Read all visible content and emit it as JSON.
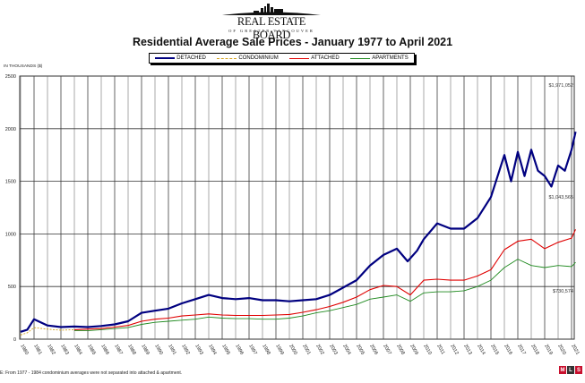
{
  "logo": {
    "name": "REAL ESTATE BOARD",
    "subtitle": "OF GREATER VANCOUVER"
  },
  "mls_logo": {
    "letters": [
      "M",
      "L",
      "S"
    ]
  },
  "chart_data": {
    "type": "line",
    "title": "Residential Average Sale Prices  -  January 1977 to April 2021",
    "ylabel": "IN THOUSANDS ($)",
    "xlabel": "",
    "ylim": [
      0,
      2500
    ],
    "yticks": [
      0,
      500,
      1000,
      1500,
      2000,
      2500
    ],
    "xticks": [
      "1980",
      "1981",
      "1982",
      "1983",
      "1984",
      "1985",
      "1986",
      "1987",
      "1988",
      "1989",
      "1990",
      "1991",
      "1992",
      "1993",
      "1994",
      "1995",
      "1996",
      "1997",
      "1998",
      "1999",
      "2000",
      "2001",
      "2002",
      "2003",
      "2004",
      "2005",
      "2006",
      "2007",
      "2008",
      "2009",
      "2010",
      "2011",
      "2012",
      "2013",
      "2014",
      "2015",
      "2016",
      "2017",
      "2018",
      "2019",
      "2020",
      "2021"
    ],
    "grid": true,
    "legend": "top-center",
    "series": [
      {
        "name": "DETACHED",
        "color": "#000080",
        "style": "solid",
        "x": [
          1980,
          1980.5,
          1981,
          1981.5,
          1982,
          1983,
          1984,
          1985,
          1986,
          1987,
          1988,
          1989,
          1990,
          1991,
          1992,
          1993,
          1994,
          1995,
          1996,
          1997,
          1998,
          1999,
          2000,
          2001,
          2002,
          2003,
          2004,
          2005,
          2006,
          2007,
          2008,
          2008.8,
          2009.5,
          2010,
          2011,
          2012,
          2013,
          2014,
          2015,
          2016,
          2016.5,
          2017,
          2017.5,
          2018,
          2018.5,
          2019,
          2019.5,
          2020,
          2020.5,
          2021,
          2021.3
        ],
        "y": [
          70,
          90,
          190,
          160,
          130,
          115,
          120,
          115,
          125,
          140,
          170,
          250,
          270,
          290,
          340,
          380,
          420,
          390,
          380,
          390,
          370,
          370,
          360,
          370,
          380,
          420,
          490,
          560,
          700,
          800,
          860,
          740,
          840,
          950,
          1100,
          1050,
          1050,
          1150,
          1350,
          1750,
          1500,
          1780,
          1550,
          1800,
          1600,
          1550,
          1450,
          1650,
          1600,
          1800,
          1971
        ]
      },
      {
        "name": "CONDOMINIUM",
        "color": "#d4a017",
        "style": "dashed",
        "x": [
          1980,
          1980.5,
          1981,
          1982,
          1983,
          1984
        ],
        "y": [
          40,
          60,
          110,
          95,
          85,
          90
        ]
      },
      {
        "name": "ATTACHED",
        "color": "#e00000",
        "style": "solid",
        "x": [
          1984,
          1985,
          1986,
          1987,
          1988,
          1989,
          1990,
          1991,
          1992,
          1993,
          1994,
          1995,
          1996,
          1997,
          1998,
          1999,
          2000,
          2001,
          2002,
          2003,
          2004,
          2005,
          2006,
          2007,
          2008,
          2009,
          2010,
          2011,
          2012,
          2013,
          2014,
          2015,
          2016,
          2017,
          2018,
          2019,
          2020,
          2021,
          2021.3
        ],
        "y": [
          90,
          95,
          100,
          115,
          130,
          170,
          190,
          200,
          220,
          230,
          240,
          230,
          225,
          225,
          225,
          230,
          235,
          255,
          280,
          310,
          350,
          400,
          470,
          510,
          500,
          420,
          560,
          570,
          560,
          560,
          600,
          660,
          850,
          930,
          950,
          860,
          920,
          960,
          1043
        ]
      },
      {
        "name": "APARTMENTS",
        "color": "#1f8a1f",
        "style": "solid",
        "x": [
          1984,
          1985,
          1986,
          1987,
          1988,
          1989,
          1990,
          1991,
          1992,
          1993,
          1994,
          1995,
          1996,
          1997,
          1998,
          1999,
          2000,
          2001,
          2002,
          2003,
          2004,
          2005,
          2006,
          2007,
          2008,
          2009,
          2010,
          2011,
          2012,
          2013,
          2014,
          2015,
          2016,
          2017,
          2018,
          2019,
          2020,
          2021,
          2021.3
        ],
        "y": [
          80,
          80,
          90,
          100,
          110,
          140,
          160,
          170,
          180,
          190,
          210,
          200,
          195,
          195,
          190,
          190,
          200,
          220,
          250,
          270,
          300,
          330,
          380,
          400,
          420,
          360,
          440,
          450,
          450,
          460,
          500,
          560,
          680,
          760,
          700,
          680,
          700,
          690,
          730
        ]
      }
    ],
    "annotations": [
      "$1,971,052",
      "$1,043,565",
      "$730,574"
    ]
  },
  "note": "E:  From 1977 - 1984 condominium averages were not separated into attached & apartment."
}
